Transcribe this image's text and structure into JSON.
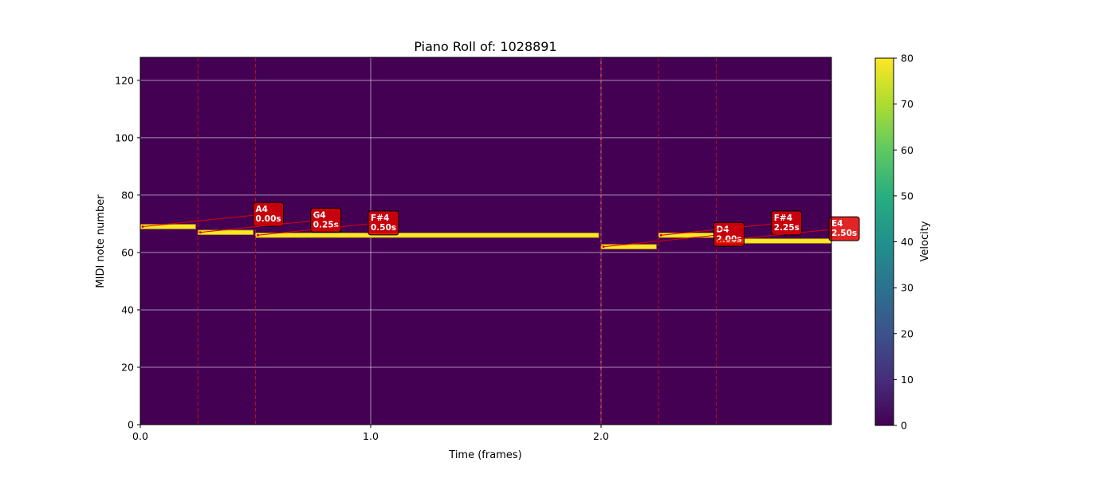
{
  "chart_data": {
    "type": "heatmap",
    "title": "Piano Roll of: 1028891",
    "xlabel": "Time (frames)",
    "ylabel": "MIDI note number",
    "xlim": [
      0,
      3.0
    ],
    "ylim": [
      0,
      128
    ],
    "x_ticks": [
      {
        "value": 0.0,
        "label": "0.0"
      },
      {
        "value": 1.0,
        "label": "1.0"
      },
      {
        "value": 2.0,
        "label": "2.0"
      }
    ],
    "y_ticks": [
      {
        "value": 0,
        "label": "0"
      },
      {
        "value": 20,
        "label": "20"
      },
      {
        "value": 40,
        "label": "40"
      },
      {
        "value": 60,
        "label": "60"
      },
      {
        "value": 80,
        "label": "80"
      },
      {
        "value": 100,
        "label": "100"
      },
      {
        "value": 120,
        "label": "120"
      }
    ],
    "grid": true,
    "background_color": "#440154",
    "colorbar": {
      "label": "Velocity",
      "min": 0,
      "max": 80,
      "ticks": [
        0,
        10,
        20,
        30,
        40,
        50,
        60,
        70,
        80
      ],
      "colormap": "viridis"
    },
    "notes": [
      {
        "name": "A4",
        "pitch": 69,
        "start": 0.0,
        "end": 0.24,
        "velocity": 80,
        "label": "0.00s"
      },
      {
        "name": "G4",
        "pitch": 67,
        "start": 0.25,
        "end": 0.49,
        "velocity": 80,
        "label": "0.25s"
      },
      {
        "name": "F#4",
        "pitch": 66,
        "start": 0.5,
        "end": 1.99,
        "velocity": 80,
        "label": "0.50s"
      },
      {
        "name": "D4",
        "pitch": 62,
        "start": 2.0,
        "end": 2.24,
        "velocity": 80,
        "label": "2.00s"
      },
      {
        "name": "F#4",
        "pitch": 66,
        "start": 2.25,
        "end": 2.49,
        "velocity": 80,
        "label": "2.25s"
      },
      {
        "name": "E4",
        "pitch": 64,
        "start": 2.5,
        "end": 3.0,
        "velocity": 80,
        "label": "2.50s"
      }
    ],
    "onset_lines": [
      0.0,
      0.25,
      0.5,
      2.0,
      2.25,
      2.5
    ],
    "annotation_box_color": "#dd0000",
    "onset_line_color": "#cc1111"
  }
}
